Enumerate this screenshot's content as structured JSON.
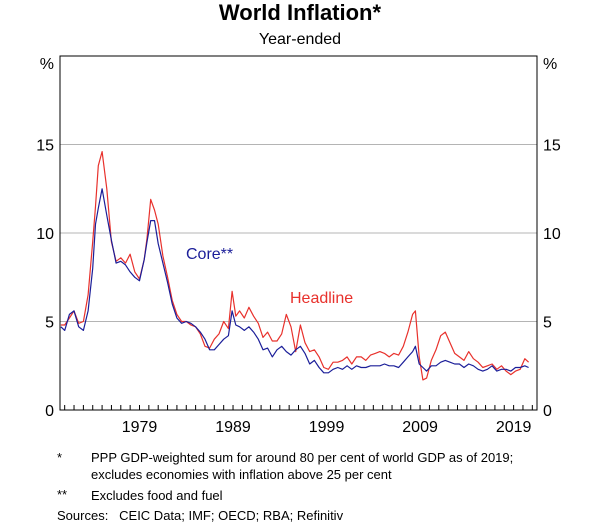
{
  "chart_data": {
    "type": "line",
    "title": "World Inflation*",
    "subtitle": "Year-ended",
    "ylabel_left": "%",
    "ylabel_right": "%",
    "ylim": [
      0,
      20
    ],
    "yticks": [
      0,
      5,
      10,
      15
    ],
    "xlim": [
      1970.5,
      2021.5
    ],
    "xticks": [
      1979,
      1989,
      1999,
      2009,
      2019
    ],
    "xtick_labels": [
      "1979",
      "1989",
      "1999",
      "2009",
      "2019"
    ],
    "grid": true,
    "series": [
      {
        "name": "Headline",
        "label": "Headline",
        "color": "#e8312c",
        "x": [
          1970.6,
          1971.0,
          1971.5,
          1972.0,
          1972.5,
          1973.0,
          1973.5,
          1974.0,
          1974.3,
          1974.6,
          1975.0,
          1975.5,
          1976.0,
          1976.5,
          1977.0,
          1977.5,
          1978.0,
          1978.5,
          1979.0,
          1979.5,
          1979.8,
          1980.2,
          1980.6,
          1981.0,
          1981.5,
          1982.0,
          1982.5,
          1983.0,
          1983.5,
          1984.0,
          1984.5,
          1985.0,
          1985.5,
          1986.0,
          1986.5,
          1987.0,
          1987.5,
          1988.0,
          1988.5,
          1988.9,
          1989.3,
          1989.7,
          1990.2,
          1990.7,
          1991.2,
          1991.7,
          1992.2,
          1992.7,
          1993.2,
          1993.7,
          1994.2,
          1994.7,
          1995.2,
          1995.7,
          1996.2,
          1996.7,
          1997.2,
          1997.7,
          1998.2,
          1998.7,
          1999.2,
          1999.7,
          2000.2,
          2000.7,
          2001.2,
          2001.7,
          2002.2,
          2002.7,
          2003.2,
          2003.7,
          2004.2,
          2004.7,
          2005.2,
          2005.7,
          2006.2,
          2006.7,
          2007.2,
          2007.7,
          2008.2,
          2008.5,
          2008.9,
          2009.3,
          2009.7,
          2010.2,
          2010.7,
          2011.2,
          2011.7,
          2012.2,
          2012.7,
          2013.2,
          2013.7,
          2014.2,
          2014.7,
          2015.2,
          2015.7,
          2016.2,
          2016.7,
          2017.2,
          2017.7,
          2018.2,
          2018.7,
          2019.2,
          2019.7,
          2020.2,
          2020.6
        ],
        "values": [
          4.8,
          4.8,
          5.2,
          5.6,
          4.9,
          5.0,
          6.5,
          9.5,
          11.5,
          13.8,
          14.6,
          12.5,
          9.5,
          8.4,
          8.6,
          8.3,
          8.8,
          7.8,
          7.4,
          8.5,
          9.7,
          11.9,
          11.3,
          10.5,
          8.7,
          7.5,
          6.2,
          5.4,
          5.0,
          5.0,
          4.8,
          4.7,
          4.3,
          3.6,
          3.5,
          4.0,
          4.3,
          5.0,
          4.6,
          6.7,
          5.3,
          5.6,
          5.2,
          5.8,
          5.3,
          4.9,
          4.1,
          4.4,
          3.9,
          3.9,
          4.3,
          5.4,
          4.7,
          3.3,
          4.8,
          3.8,
          3.3,
          3.4,
          3.0,
          2.4,
          2.3,
          2.7,
          2.7,
          2.8,
          3.0,
          2.6,
          3.0,
          3.0,
          2.8,
          3.1,
          3.2,
          3.3,
          3.2,
          3.0,
          3.2,
          3.1,
          3.6,
          4.4,
          5.4,
          5.6,
          3.0,
          1.7,
          1.8,
          2.8,
          3.4,
          4.2,
          4.4,
          3.8,
          3.2,
          3.0,
          2.8,
          3.3,
          2.9,
          2.7,
          2.4,
          2.5,
          2.6,
          2.3,
          2.5,
          2.2,
          2.0,
          2.2,
          2.3,
          2.9,
          2.7
        ]
      },
      {
        "name": "Core**",
        "label": "Core**",
        "color": "#1b1e99",
        "x": [
          1970.6,
          1971.0,
          1971.5,
          1972.0,
          1972.5,
          1973.0,
          1973.5,
          1974.0,
          1974.3,
          1974.6,
          1975.0,
          1975.5,
          1976.0,
          1976.5,
          1977.0,
          1977.5,
          1978.0,
          1978.5,
          1979.0,
          1979.5,
          1979.8,
          1980.2,
          1980.6,
          1981.0,
          1981.5,
          1982.0,
          1982.5,
          1983.0,
          1983.5,
          1984.0,
          1984.5,
          1985.0,
          1985.5,
          1986.0,
          1986.5,
          1987.0,
          1987.5,
          1988.0,
          1988.5,
          1988.9,
          1989.3,
          1989.7,
          1990.2,
          1990.7,
          1991.2,
          1991.7,
          1992.2,
          1992.7,
          1993.2,
          1993.7,
          1994.2,
          1994.7,
          1995.2,
          1995.7,
          1996.2,
          1996.7,
          1997.2,
          1997.7,
          1998.2,
          1998.7,
          1999.2,
          1999.7,
          2000.2,
          2000.7,
          2001.2,
          2001.7,
          2002.2,
          2002.7,
          2003.2,
          2003.7,
          2004.2,
          2004.7,
          2005.2,
          2005.7,
          2006.2,
          2006.7,
          2007.2,
          2007.7,
          2008.2,
          2008.5,
          2008.9,
          2009.3,
          2009.7,
          2010.2,
          2010.7,
          2011.2,
          2011.7,
          2012.2,
          2012.7,
          2013.2,
          2013.7,
          2014.2,
          2014.7,
          2015.2,
          2015.7,
          2016.2,
          2016.7,
          2017.2,
          2017.7,
          2018.2,
          2018.7,
          2019.2,
          2019.7,
          2020.2,
          2020.6
        ],
        "values": [
          4.7,
          4.5,
          5.4,
          5.6,
          4.7,
          4.5,
          5.6,
          8.0,
          10.5,
          11.4,
          12.5,
          11.0,
          9.6,
          8.3,
          8.4,
          8.2,
          7.8,
          7.5,
          7.3,
          8.5,
          9.5,
          10.7,
          10.7,
          9.4,
          8.3,
          7.2,
          6.0,
          5.2,
          4.9,
          5.0,
          4.9,
          4.7,
          4.4,
          4.0,
          3.4,
          3.4,
          3.7,
          4.0,
          4.2,
          5.6,
          4.8,
          4.7,
          4.5,
          4.7,
          4.4,
          4.0,
          3.4,
          3.5,
          3.0,
          3.4,
          3.6,
          3.3,
          3.1,
          3.4,
          3.6,
          3.2,
          2.6,
          2.8,
          2.4,
          2.1,
          2.1,
          2.3,
          2.4,
          2.3,
          2.5,
          2.3,
          2.5,
          2.4,
          2.4,
          2.5,
          2.5,
          2.5,
          2.6,
          2.5,
          2.5,
          2.4,
          2.7,
          3.0,
          3.3,
          3.6,
          2.6,
          2.4,
          2.2,
          2.5,
          2.5,
          2.7,
          2.8,
          2.7,
          2.6,
          2.6,
          2.4,
          2.6,
          2.5,
          2.3,
          2.2,
          2.3,
          2.5,
          2.2,
          2.3,
          2.3,
          2.2,
          2.4,
          2.4,
          2.5,
          2.4
        ]
      }
    ]
  },
  "notes": [
    {
      "mark": "*",
      "text": "PPP GDP-weighted sum for around 80 per cent of world GDP as of 2019; excludes economies with inflation above 25 per cent"
    },
    {
      "mark": "**",
      "text": "Excludes food and fuel"
    }
  ],
  "sources": "Sources:   CEIC Data; IMF; OECD; RBA; Refinitiv"
}
